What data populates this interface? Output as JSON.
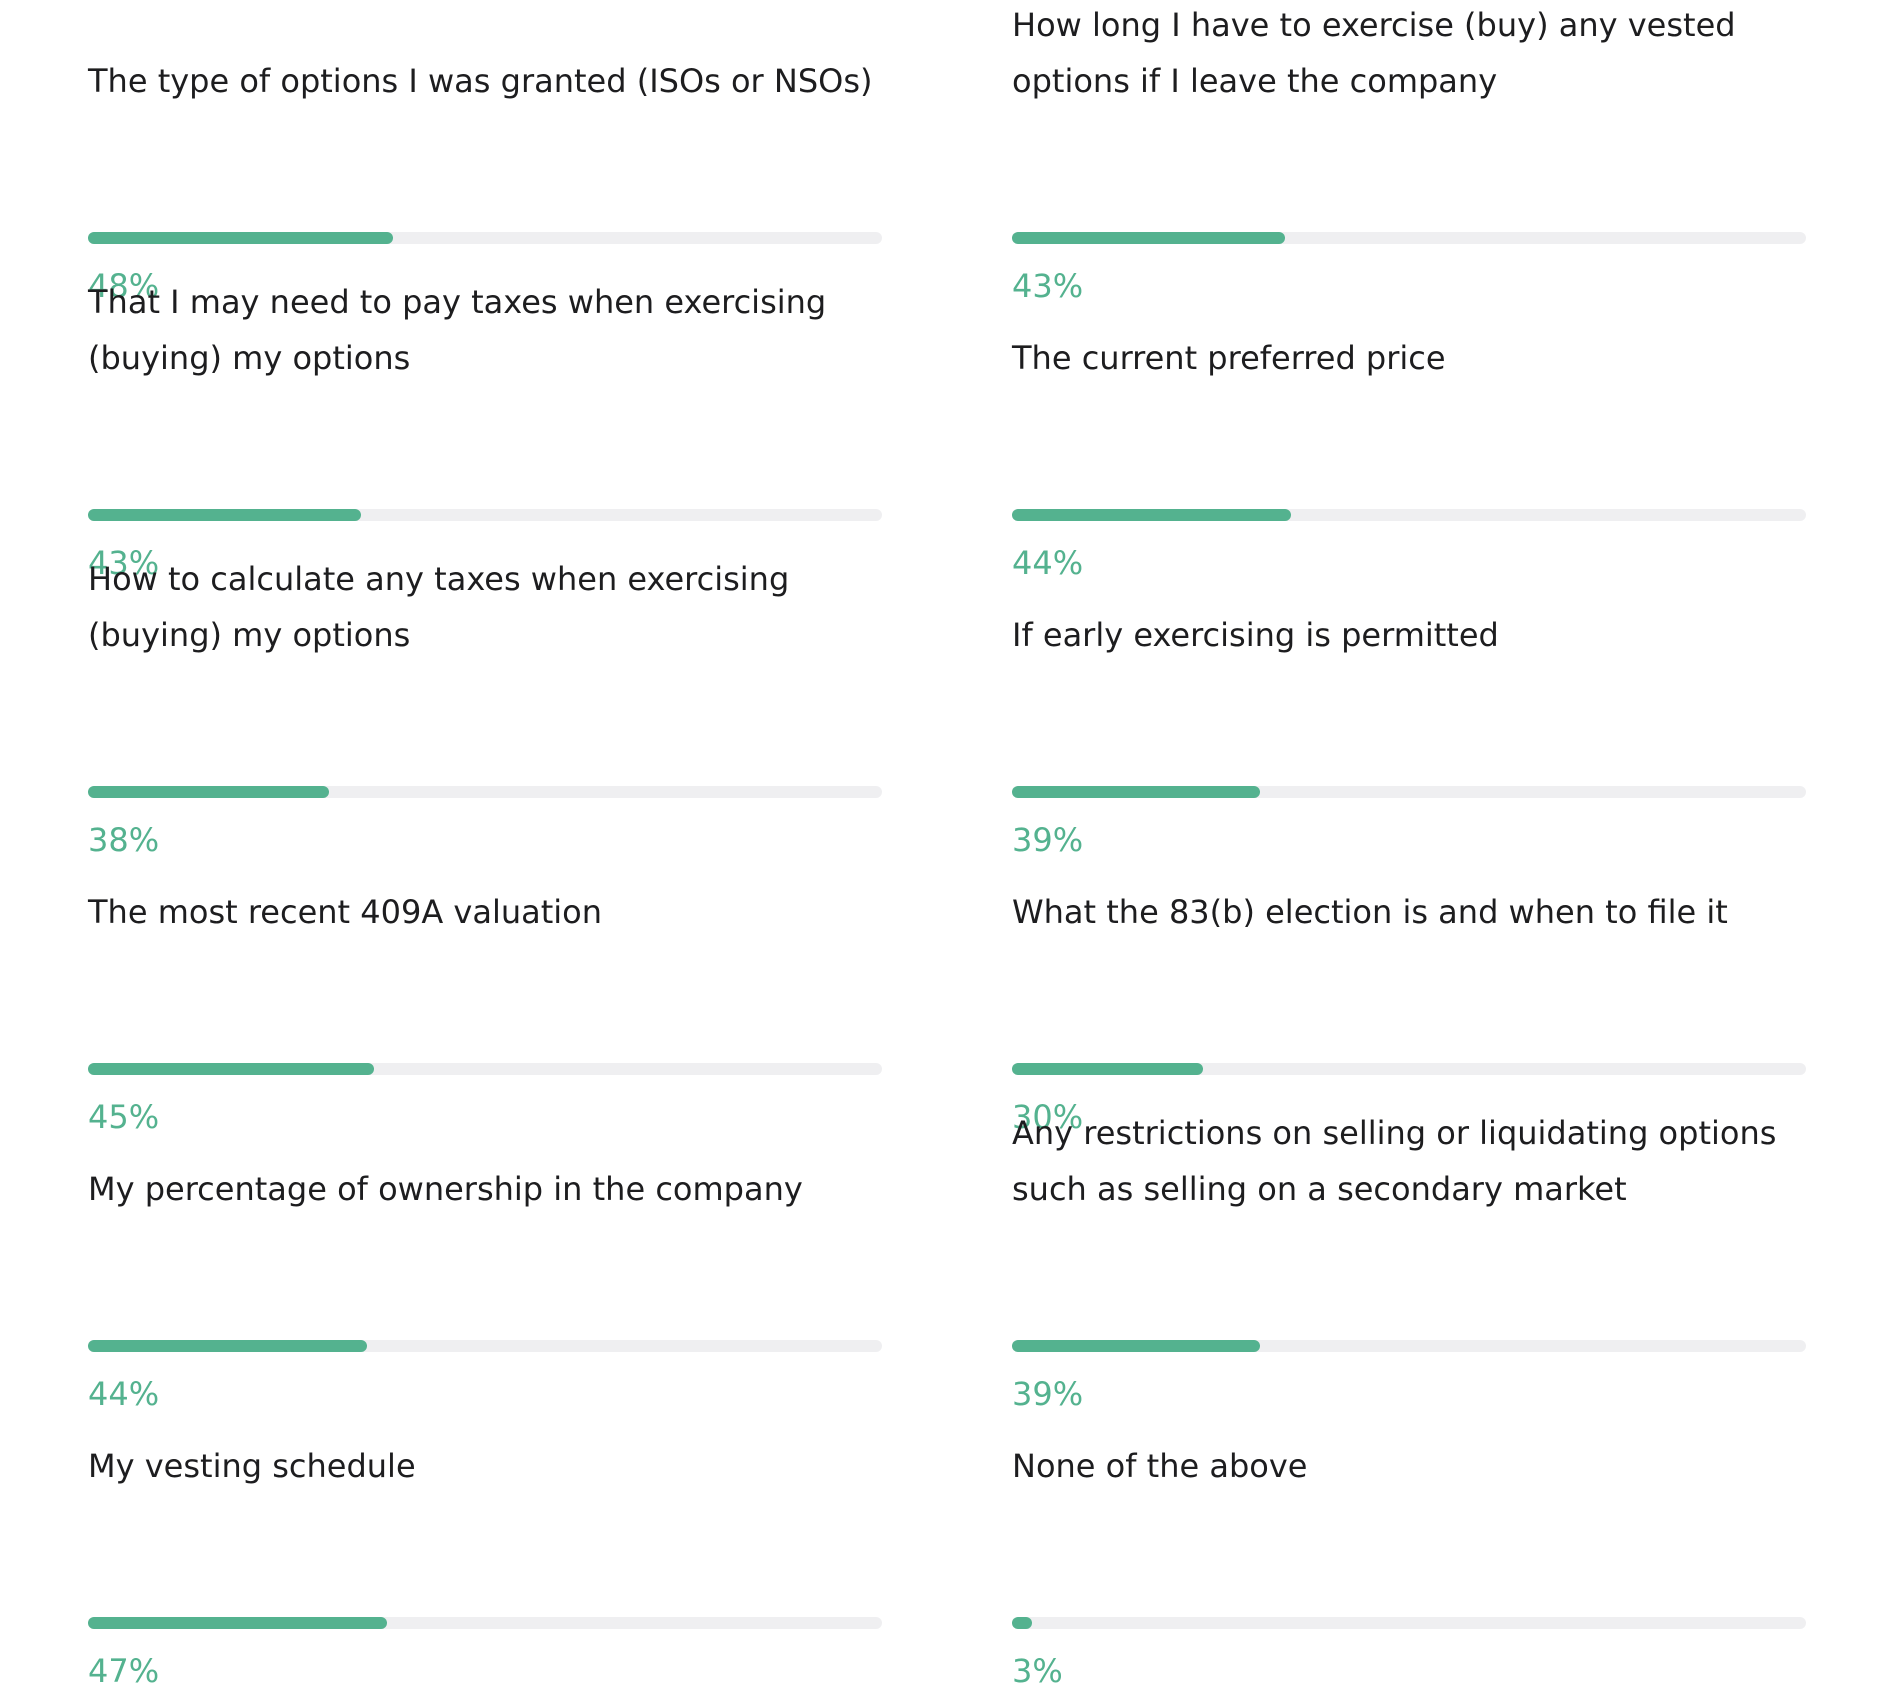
{
  "chart_data": {
    "type": "bar",
    "orientation": "horizontal",
    "layout": "two-column progress bars",
    "xlim": [
      0,
      100
    ],
    "unit": "%",
    "colors": {
      "fill": "#54b28f",
      "track": "#efeff1",
      "label": "#1d1d1f",
      "value": "#54b28f"
    },
    "items": [
      {
        "label_lines": [
          "The type of options I was granted (ISOs or NSOs)"
        ],
        "value": 48,
        "value_label": "48%"
      },
      {
        "label_lines": [
          "How long I have to exercise (buy) any vested",
          "options if I leave the company"
        ],
        "value": 43,
        "value_label": "43%"
      },
      {
        "label_lines": [
          "That I may need to pay taxes when exercising",
          "(buying) my options"
        ],
        "value": 43,
        "value_label": "43%"
      },
      {
        "label_lines": [
          "The current preferred price"
        ],
        "value": 44,
        "value_label": "44%"
      },
      {
        "label_lines": [
          "How to calculate any taxes when exercising",
          "(buying) my options"
        ],
        "value": 38,
        "value_label": "38%"
      },
      {
        "label_lines": [
          "If early exercising is permitted"
        ],
        "value": 39,
        "value_label": "39%"
      },
      {
        "label_lines": [
          "The most recent 409A valuation"
        ],
        "value": 45,
        "value_label": "45%"
      },
      {
        "label_lines": [
          "What the 83(b) election is and when to file it"
        ],
        "value": 30,
        "value_label": "30%"
      },
      {
        "label_lines": [
          "My percentage of ownership in the company"
        ],
        "value": 44,
        "value_label": "44%"
      },
      {
        "label_lines": [
          "Any restrictions on selling or liquidating options",
          "such as selling on a secondary market"
        ],
        "value": 39,
        "value_label": "39%"
      },
      {
        "label_lines": [
          "My vesting schedule"
        ],
        "value": 47,
        "value_label": "47%"
      },
      {
        "label_lines": [
          "None of the above"
        ],
        "value": 3,
        "value_label": "3%"
      }
    ]
  }
}
